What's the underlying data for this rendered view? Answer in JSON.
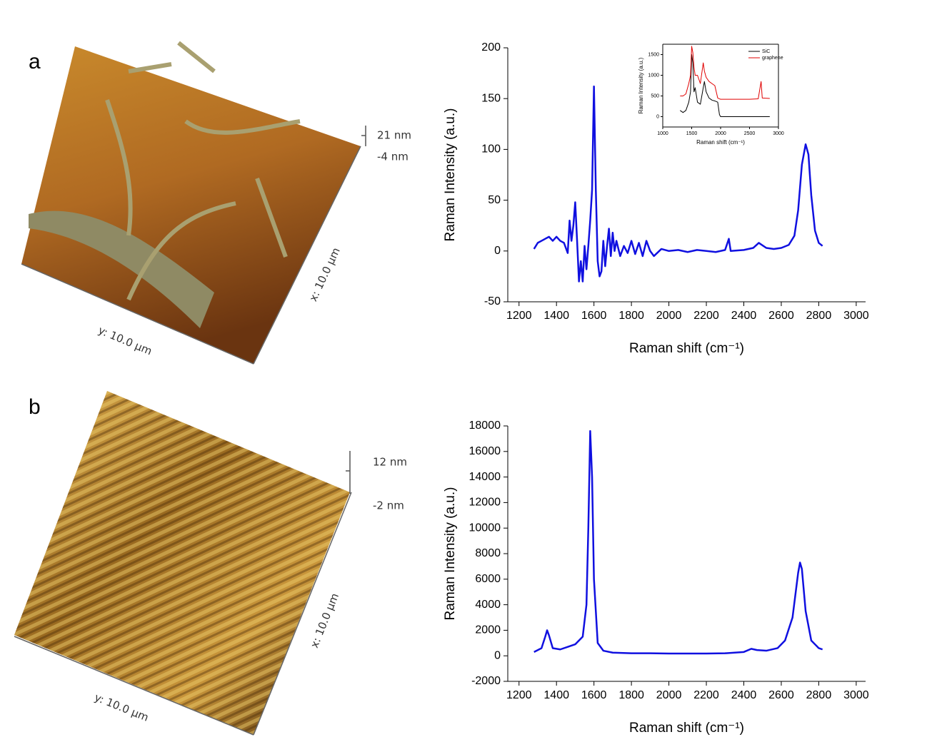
{
  "panels": [
    {
      "label": "a",
      "scale_top": "21 nm",
      "scale_bottom": "-4 nm",
      "x_size": "x: 10.0 µm",
      "y_size": "y: 10.0 µm"
    },
    {
      "label": "b",
      "scale_top": "12 nm",
      "scale_bottom": "-2 nm",
      "x_size": "x: 10.0 µm",
      "y_size": "y: 10.0 µm"
    }
  ],
  "chart_data": [
    {
      "type": "line",
      "xlabel": "Raman shift (cm⁻¹)",
      "ylabel": "Raman Intensity (a.u.)",
      "color": "#1010e0",
      "x": [
        1280,
        1300,
        1320,
        1340,
        1360,
        1380,
        1400,
        1420,
        1440,
        1460,
        1470,
        1480,
        1490,
        1500,
        1510,
        1520,
        1530,
        1540,
        1550,
        1560,
        1570,
        1580,
        1590,
        1600,
        1610,
        1620,
        1630,
        1640,
        1650,
        1660,
        1670,
        1680,
        1690,
        1700,
        1710,
        1720,
        1740,
        1760,
        1780,
        1800,
        1820,
        1840,
        1860,
        1880,
        1900,
        1920,
        1960,
        2000,
        2050,
        2100,
        2150,
        2200,
        2250,
        2300,
        2320,
        2330,
        2400,
        2450,
        2480,
        2520,
        2560,
        2600,
        2640,
        2670,
        2690,
        2710,
        2730,
        2745,
        2760,
        2780,
        2800,
        2820
      ],
      "values": [
        2,
        8,
        10,
        12,
        14,
        10,
        14,
        10,
        8,
        -2,
        30,
        10,
        25,
        48,
        10,
        -30,
        -10,
        -30,
        5,
        -18,
        5,
        30,
        60,
        162,
        60,
        -10,
        -25,
        -20,
        10,
        -15,
        5,
        22,
        -5,
        18,
        0,
        10,
        -5,
        5,
        -2,
        10,
        -3,
        8,
        -5,
        10,
        0,
        -5,
        2,
        0,
        1,
        -1,
        1,
        0,
        -1,
        1,
        12,
        0,
        1,
        3,
        8,
        3,
        2,
        3,
        6,
        15,
        40,
        85,
        105,
        95,
        55,
        20,
        8,
        5
      ],
      "xlim": [
        1140,
        3050
      ],
      "ylim": [
        -50,
        200
      ],
      "xticks": [
        1200,
        1400,
        1600,
        1800,
        2000,
        2200,
        2400,
        2600,
        2800,
        3000
      ],
      "yticks": [
        -50,
        0,
        50,
        100,
        150,
        200
      ]
    },
    {
      "type": "line",
      "xlabel": "Raman shift (cm⁻¹)",
      "ylabel": "Raman Intensity (a.u.)",
      "x": [
        1300,
        1350,
        1400,
        1450,
        1480,
        1500,
        1520,
        1540,
        1560,
        1600,
        1650,
        1700,
        1720,
        1750,
        1800,
        1850,
        1900,
        1950,
        1980,
        2000,
        2500,
        2650,
        2700,
        2720,
        2850
      ],
      "series": [
        {
          "name": "SiC",
          "color": "#000000",
          "values": [
            150,
            100,
            150,
            350,
            600,
            1500,
            1300,
            600,
            700,
            350,
            300,
            700,
            850,
            600,
            450,
            400,
            380,
            350,
            50,
            0,
            0,
            0,
            0,
            0,
            0
          ]
        },
        {
          "name": "graphene",
          "color": "#e00000",
          "values": [
            500,
            500,
            550,
            800,
            1000,
            1700,
            1550,
            1200,
            1000,
            1000,
            800,
            1300,
            1100,
            950,
            850,
            800,
            750,
            450,
            430,
            420,
            420,
            430,
            850,
            450,
            440
          ]
        }
      ],
      "xlim": [
        1000,
        3000
      ],
      "ylim": [
        -250,
        1750
      ],
      "xticks": [
        1000,
        1500,
        2000,
        2500,
        3000
      ],
      "yticks": [
        0,
        500,
        1000,
        1500
      ]
    },
    {
      "type": "line",
      "xlabel": "Raman shift (cm⁻¹)",
      "ylabel": "Raman Intensity (a.u.)",
      "color": "#1010e0",
      "x": [
        1280,
        1320,
        1340,
        1350,
        1360,
        1380,
        1420,
        1460,
        1500,
        1540,
        1560,
        1570,
        1580,
        1590,
        1600,
        1620,
        1650,
        1700,
        1800,
        1900,
        2000,
        2100,
        2200,
        2300,
        2400,
        2440,
        2470,
        2520,
        2580,
        2620,
        2660,
        2690,
        2700,
        2710,
        2730,
        2760,
        2800,
        2820
      ],
      "values": [
        300,
        600,
        1500,
        2000,
        1600,
        600,
        500,
        700,
        900,
        1500,
        4000,
        10000,
        17600,
        14000,
        6000,
        1000,
        400,
        250,
        200,
        200,
        180,
        180,
        180,
        200,
        300,
        550,
        450,
        400,
        600,
        1200,
        3000,
        6500,
        7300,
        6800,
        3500,
        1200,
        600,
        500
      ],
      "xlim": [
        1140,
        3050
      ],
      "ylim": [
        -2000,
        18000
      ],
      "xticks": [
        1200,
        1400,
        1600,
        1800,
        2000,
        2200,
        2400,
        2600,
        2800,
        3000
      ],
      "yticks": [
        -2000,
        0,
        2000,
        4000,
        6000,
        8000,
        10000,
        12000,
        14000,
        16000,
        18000
      ]
    }
  ]
}
